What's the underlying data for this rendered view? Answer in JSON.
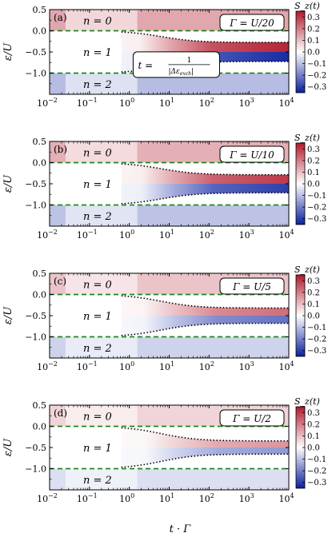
{
  "colors": {
    "red": "#b2182b",
    "blue": "#0a1f9e",
    "white": "#ffffff",
    "guide": "#1b8a1b",
    "boundary": "#000000"
  },
  "shared": {
    "xlabel": "t · Γ",
    "ylabel": "ε/U",
    "colorbar_label": "S_z(t)",
    "xscale": "log",
    "xlim": [
      0.01,
      10000
    ],
    "ylim": [
      -1.5,
      0.5
    ],
    "clim": [
      -0.35,
      0.35
    ],
    "xtick_exponents": [
      "-2",
      "-1",
      "0",
      "1",
      "2",
      "3",
      "4"
    ],
    "ytick_labels": [
      "0.5",
      "0.0",
      "−0.5",
      "−1.0"
    ],
    "ytick_values": [
      0.5,
      0.0,
      -0.5,
      -1.0
    ],
    "cbar_tick_labels": [
      "0.3",
      "0.2",
      "0.1",
      "0.0",
      "−0.1",
      "−0.2",
      "−0.3"
    ],
    "cbar_tick_values": [
      0.3,
      0.2,
      0.1,
      0.0,
      -0.1,
      -0.2,
      -0.3
    ]
  },
  "chart_data": [
    {
      "type": "heatmap",
      "panel_label": "(a)",
      "gamma_label": "Γ = U/20",
      "gamma_over_U": 0.05,
      "regions": [
        {
          "label": "n = 0",
          "y": 0.25
        },
        {
          "label": "n = 1",
          "y": -0.5
        },
        {
          "label": "n = 2",
          "y": -1.25
        }
      ],
      "guides_y": [
        0.0,
        -1.0
      ],
      "annotation": {
        "prefix": "t = ",
        "num": "1",
        "den": "|Δε",
        "den_sub": "exch",
        "den_end": "|"
      },
      "peak_abs_Sz": 0.33
    },
    {
      "type": "heatmap",
      "panel_label": "(b)",
      "gamma_label": "Γ = U/10",
      "gamma_over_U": 0.1,
      "regions": [
        {
          "label": "n = 0",
          "y": 0.25
        },
        {
          "label": "n = 1",
          "y": -0.5
        },
        {
          "label": "n = 2",
          "y": -1.25
        }
      ],
      "guides_y": [
        0.0,
        -1.0
      ],
      "peak_abs_Sz": 0.3
    },
    {
      "type": "heatmap",
      "panel_label": "(c)",
      "gamma_label": "Γ = U/5",
      "gamma_over_U": 0.2,
      "regions": [
        {
          "label": "n = 0",
          "y": 0.25
        },
        {
          "label": "n = 1",
          "y": -0.5
        },
        {
          "label": "n = 2",
          "y": -1.25
        }
      ],
      "guides_y": [
        0.0,
        -1.0
      ],
      "peak_abs_Sz": 0.22
    },
    {
      "type": "heatmap",
      "panel_label": "(d)",
      "gamma_label": "Γ = U/2",
      "gamma_over_U": 0.5,
      "regions": [
        {
          "label": "n = 0",
          "y": 0.25
        },
        {
          "label": "n = 1",
          "y": -0.5
        },
        {
          "label": "n = 2",
          "y": -1.25
        }
      ],
      "guides_y": [
        0.0,
        -1.0
      ],
      "peak_abs_Sz": 0.16
    }
  ]
}
